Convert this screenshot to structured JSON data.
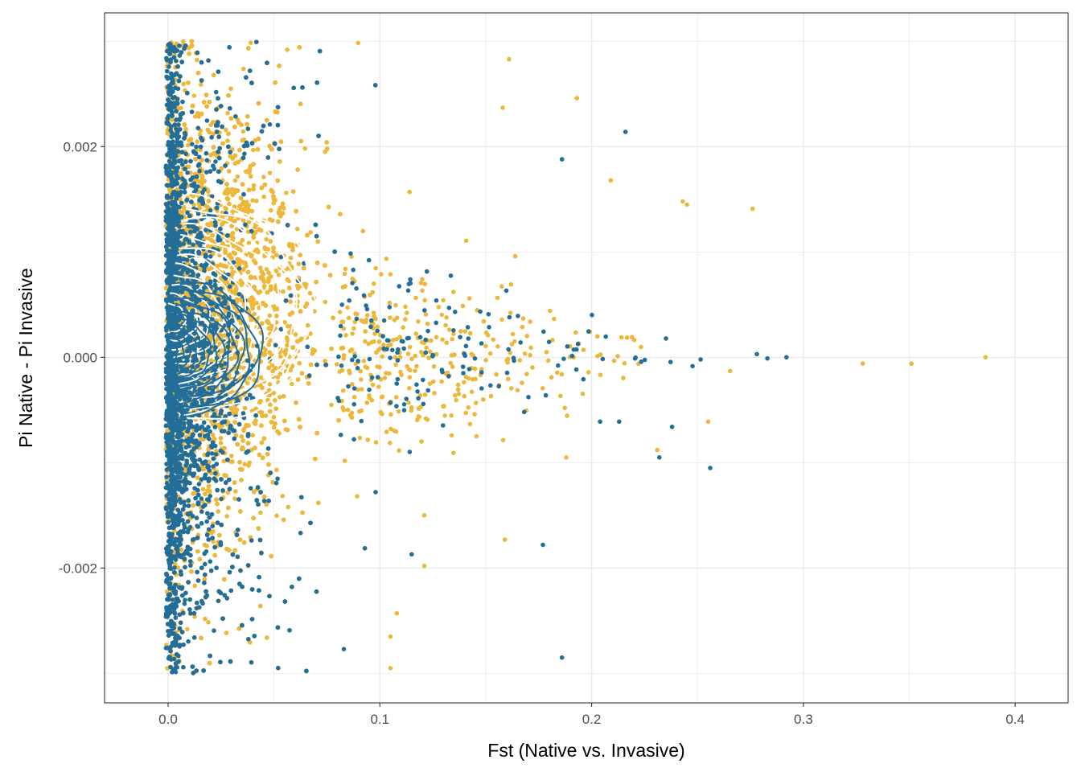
{
  "chart_data": {
    "type": "scatter",
    "title": "",
    "xlabel": "Fst (Native vs. Invasive)",
    "ylabel": "Pi Native - Pi Invasive",
    "xlim": [
      -0.03,
      0.425
    ],
    "ylim": [
      -0.00328,
      0.00327
    ],
    "x_ticks": [
      0.0,
      0.1,
      0.2,
      0.3,
      0.4
    ],
    "x_tick_labels": [
      "0.0",
      "0.1",
      "0.2",
      "0.3",
      "0.4"
    ],
    "y_ticks": [
      -0.002,
      0.0,
      0.002
    ],
    "y_tick_labels": [
      "-0.002",
      "0.000",
      "0.002"
    ],
    "grid": true,
    "theme": "bw",
    "legend": "none",
    "colors": {
      "series_gold": "#EDB73B",
      "series_blue": "#226E99",
      "contour_gold": "#FFFFFF",
      "contour_blue": "#226E99",
      "grid": "#EBEBEB",
      "frame": "#333333"
    },
    "series": [
      {
        "color": "#EDB73B",
        "count": 8000,
        "density_center": [
          0.02,
          0.0004
        ],
        "density_spread": [
          0.022,
          0.0011
        ],
        "outliers": [
          [
            0.386,
            0.0
          ],
          [
            0.351,
            -6e-05
          ],
          [
            0.328,
            -6e-05
          ],
          [
            0.276,
            0.00141
          ],
          [
            0.245,
            0.00145
          ],
          [
            0.243,
            0.00148
          ],
          [
            0.209,
            0.00168
          ],
          [
            0.193,
            0.00246
          ],
          [
            0.161,
            0.00283
          ],
          [
            0.158,
            0.00237
          ],
          [
            0.159,
            -0.00173
          ],
          [
            0.188,
            -0.00095
          ],
          [
            0.105,
            -0.00295
          ],
          [
            0.105,
            -0.00265
          ],
          [
            0.108,
            -0.00243
          ],
          [
            0.121,
            -0.00198
          ],
          [
            0.121,
            -0.0015
          ],
          [
            0.231,
            -0.00088
          ],
          [
            0.255,
            -0.00061
          ]
        ]
      },
      {
        "color": "#226E99",
        "count": 3500,
        "density_center": [
          0.006,
          0.0
        ],
        "density_spread": [
          0.012,
          0.0011
        ],
        "outliers": [
          [
            0.292,
            0.0
          ],
          [
            0.283,
            -1e-05
          ],
          [
            0.278,
            3e-05
          ],
          [
            0.256,
            -0.00105
          ],
          [
            0.232,
            -0.00095
          ],
          [
            0.238,
            -0.00066
          ],
          [
            0.216,
            0.00214
          ],
          [
            0.213,
            -0.00061
          ],
          [
            0.204,
            -0.00061
          ],
          [
            0.186,
            0.00188
          ],
          [
            0.186,
            -0.00285
          ],
          [
            0.177,
            -0.00178
          ],
          [
            0.115,
            -0.00187
          ],
          [
            0.098,
            -0.00128
          ],
          [
            0.083,
            -0.00277
          ]
        ]
      }
    ]
  }
}
